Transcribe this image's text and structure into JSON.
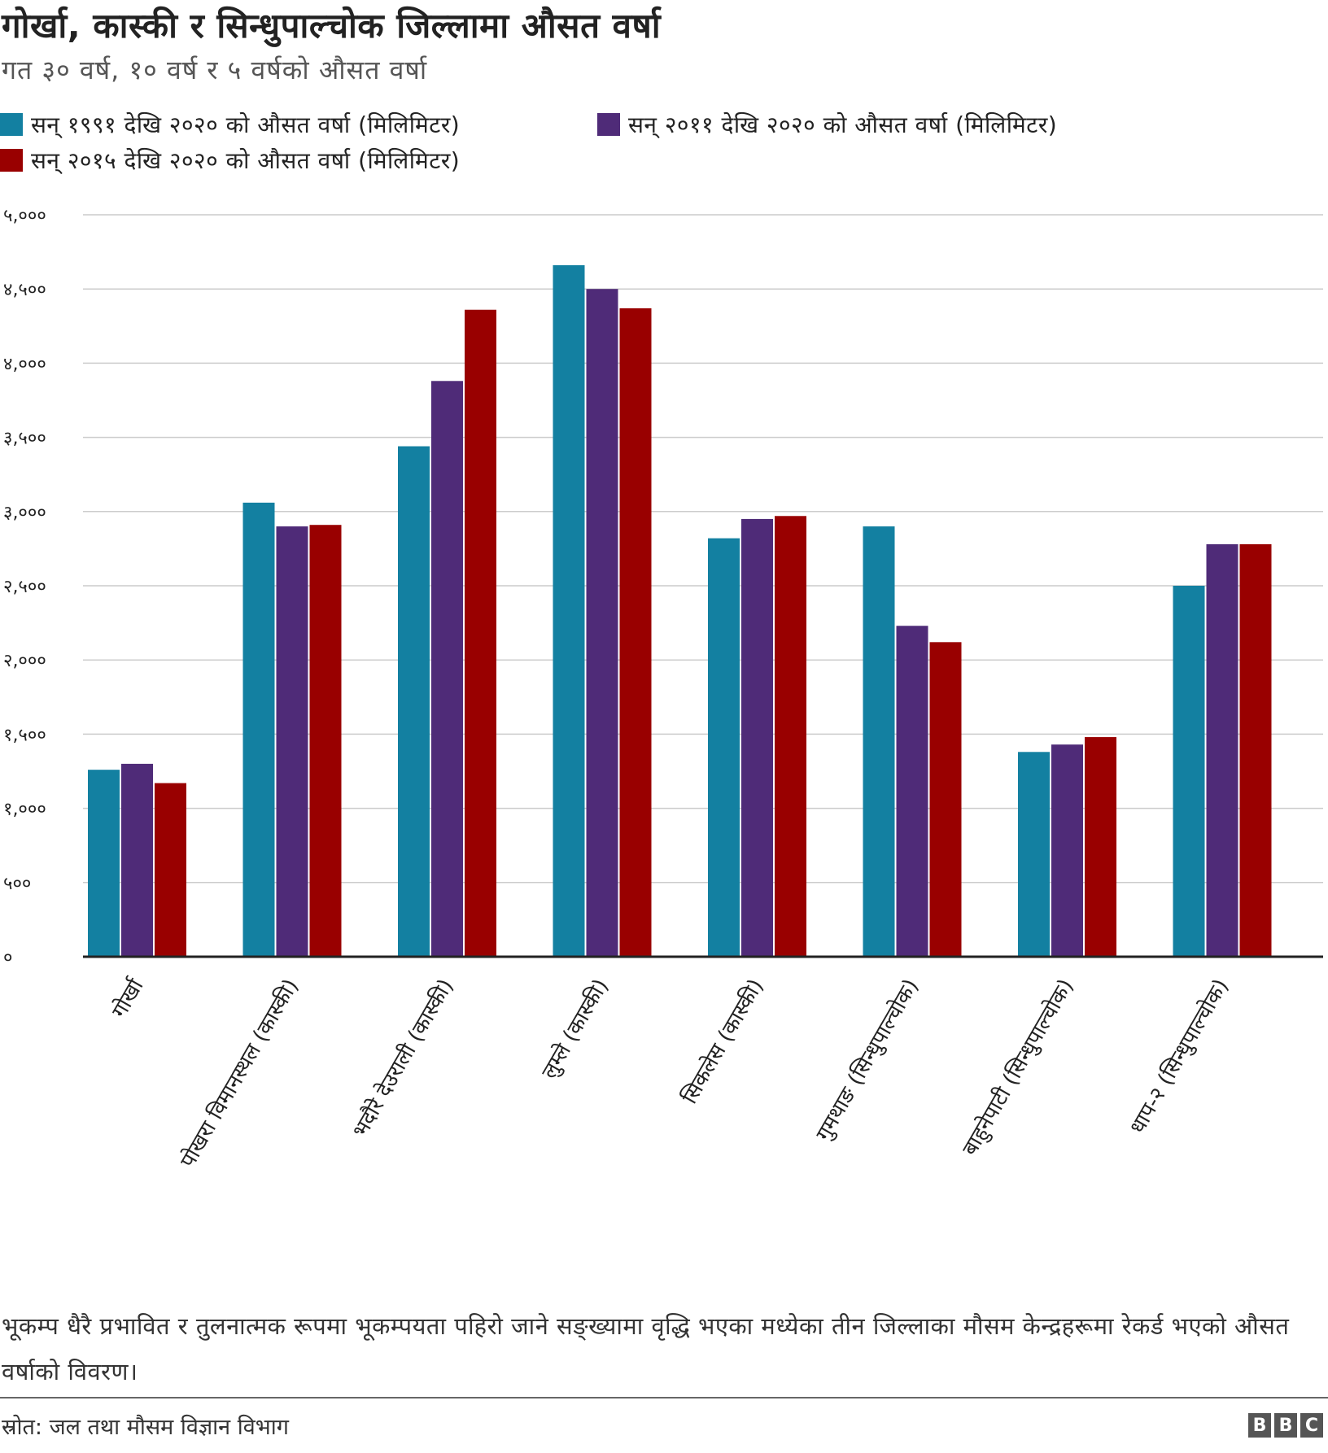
{
  "chart_data": {
    "type": "bar",
    "title": "गोर्खा, कास्की र सिन्धुपाल्चोक जिल्लामा औसत वर्षा",
    "subtitle": "गत ३० वर्ष, १० वर्ष र ५ वर्षको औसत वर्षा",
    "xlabel": "",
    "ylabel": "",
    "ylim": [
      0,
      5000
    ],
    "yticks": [
      0,
      500,
      1000,
      1500,
      2000,
      2500,
      3000,
      3500,
      4000,
      4500,
      5000
    ],
    "ytick_labels": [
      "०",
      "५००",
      "१,०००",
      "१,५००",
      "२,०००",
      "२,५००",
      "३,०००",
      "३,५००",
      "४,०००",
      "४,५००",
      "५,०००"
    ],
    "grid": true,
    "legend_position": "top",
    "categories": [
      "गोर्खा",
      "पोखरा विमानस्थल (कास्की)",
      "भदौरे देउराली (कास्की)",
      "लुम्ले (कास्की)",
      "सिकलेस (कास्की)",
      "गुमथाङ (सिन्धुपाल्चोक)",
      "बाहुनेपाटी (सिन्धुपाल्चोक)",
      "धाप-२ (सिन्धुपाल्चोक)"
    ],
    "series": [
      {
        "name": "सन् १९९१ देखि २०२० को औसत वर्षा (मिलिमिटर)",
        "color": "#1380A1",
        "values": [
          1260,
          3060,
          3440,
          4660,
          2820,
          2900,
          1380,
          2500
        ]
      },
      {
        "name": "सन् २०११ देखि २०२० को औसत वर्षा (मिलिमिटर)",
        "color": "#4F2B78",
        "values": [
          1300,
          2900,
          3880,
          4500,
          2950,
          2230,
          1430,
          2780
        ]
      },
      {
        "name": "सन् २०१५ देखि २०२० को औसत वर्षा (मिलिमिटर)",
        "color": "#990000",
        "values": [
          1170,
          2910,
          4360,
          4370,
          2970,
          2120,
          1480,
          2780
        ]
      }
    ]
  },
  "note": "भूकम्प धैरै प्रभावित र तुलनात्मक रूपमा भूकम्पयता पहिरो जाने सङ्ख्यामा वृद्धि भएका मध्येका तीन जिल्लाका मौसम केन्द्रहरूमा रेकर्ड भएको औसत वर्षाको विवरण।",
  "source": "स्रोत: जल तथा मौसम विज्ञान विभाग",
  "logo": [
    "B",
    "B",
    "C"
  ]
}
